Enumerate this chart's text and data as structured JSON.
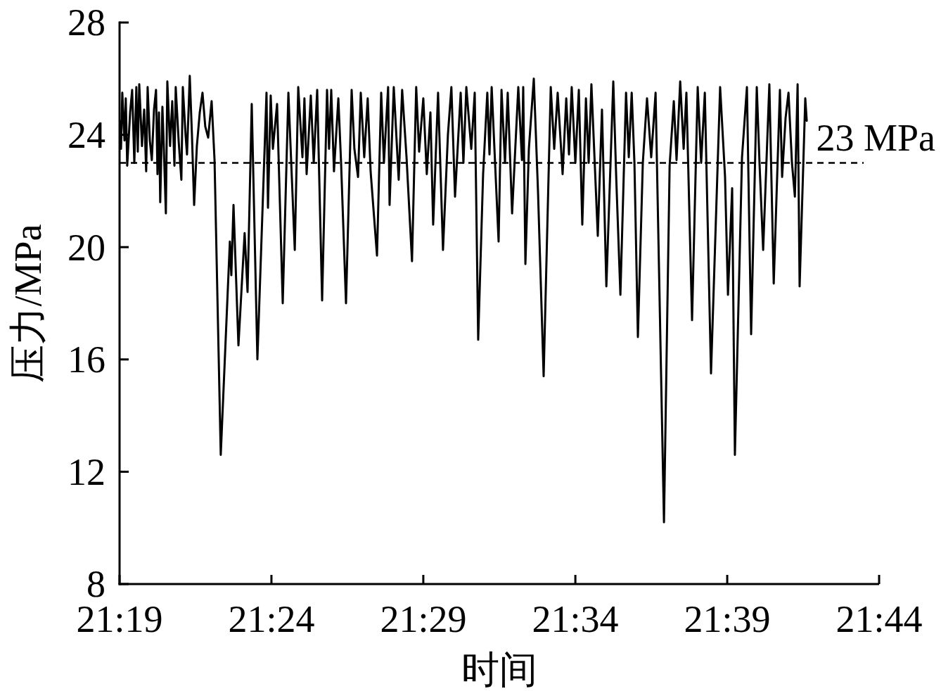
{
  "chart_data": {
    "type": "line",
    "xlabel": "时间",
    "ylabel": "压力/MPa",
    "color": "#000000",
    "xlim": [
      21.3167,
      21.7333
    ],
    "xticks": [
      {
        "value": 21.3167,
        "label": "21:19"
      },
      {
        "value": 21.4,
        "label": "21:24"
      },
      {
        "value": 21.4833,
        "label": "21:29"
      },
      {
        "value": 21.5667,
        "label": "21:34"
      },
      {
        "value": 21.65,
        "label": "21:39"
      },
      {
        "value": 21.7333,
        "label": "21:44"
      }
    ],
    "ylim": [
      8,
      28
    ],
    "yticks": [
      8,
      12,
      16,
      20,
      24,
      28
    ],
    "ref_lines": [
      {
        "axis": "y",
        "value": 23,
        "label": "23 MPa",
        "color": "#000000",
        "line_style": "dashed"
      }
    ],
    "x": [
      21.3167,
      21.3175,
      21.3182,
      21.3194,
      21.3201,
      21.3209,
      21.3225,
      21.3236,
      21.3248,
      21.3259,
      21.3267,
      21.3275,
      21.329,
      21.3302,
      21.3313,
      21.3321,
      21.3333,
      21.3344,
      21.3356,
      21.3367,
      21.3375,
      21.3383,
      21.339,
      21.3402,
      21.341,
      21.3421,
      21.3429,
      21.3444,
      21.3456,
      21.3468,
      21.3475,
      21.3491,
      21.3506,
      21.3514,
      21.3529,
      21.3537,
      21.3552,
      21.3564,
      21.3576,
      21.3591,
      21.3607,
      21.3622,
      21.3637,
      21.3653,
      21.3672,
      21.3688,
      21.3722,
      21.3772,
      21.378,
      21.3792,
      21.3819,
      21.3853,
      21.3869,
      21.3892,
      21.3923,
      21.3973,
      21.3981,
      21.3996,
      21.4008,
      21.4031,
      21.4062,
      21.4093,
      21.4128,
      21.4147,
      21.417,
      21.4181,
      21.4193,
      21.4216,
      21.4232,
      21.4251,
      21.4278,
      21.4305,
      21.4316,
      21.4328,
      21.4343,
      21.4367,
      21.4382,
      21.4409,
      21.444,
      21.4455,
      21.4475,
      21.449,
      21.4509,
      21.4528,
      21.4544,
      21.4579,
      21.4602,
      21.4617,
      21.464,
      21.4648,
      21.4671,
      21.4698,
      21.4717,
      21.4741,
      21.4771,
      21.4794,
      21.481,
      21.4833,
      21.4852,
      21.4872,
      21.4887,
      21.4914,
      21.4941,
      21.4968,
      21.4987,
      21.5007,
      21.5038,
      21.5053,
      21.5069,
      21.5096,
      21.5115,
      21.5134,
      21.5161,
      21.5184,
      21.5196,
      21.5208,
      21.5246,
      21.5262,
      21.5281,
      21.5296,
      21.532,
      21.5354,
      21.5374,
      21.5381,
      21.5393,
      21.5412,
      21.5439,
      21.5462,
      21.5493,
      21.5532,
      21.5551,
      21.557,
      21.5597,
      21.5617,
      21.5632,
      21.5647,
      21.5667,
      21.5686,
      21.5705,
      21.5725,
      21.574,
      21.5755,
      21.579,
      21.5813,
      21.5837,
      21.5875,
      21.5891,
      21.5914,
      21.5945,
      21.596,
      21.5976,
      21.5991,
      21.601,
      21.6037,
      21.606,
      21.6083,
      21.6107,
      21.6118,
      21.6153,
      21.6184,
      21.6207,
      21.6222,
      21.6242,
      21.6261,
      21.6276,
      21.6307,
      21.6338,
      21.6357,
      21.6377,
      21.6411,
      21.6461,
      21.6488,
      21.6504,
      21.6527,
      21.6542,
      21.6581,
      21.6608,
      21.6631,
      21.6662,
      21.6677,
      21.6697,
      21.6731,
      21.6755,
      21.6789,
      21.6801,
      21.682,
      21.6836,
      21.6855,
      21.6871,
      21.6886,
      21.6897,
      21.6928,
      21.6936
    ],
    "values": [
      24.5,
      23.5,
      25.5,
      23.8,
      25.3,
      22.9,
      24.8,
      25.6,
      23.0,
      25.7,
      23.4,
      25.8,
      23.6,
      24.9,
      22.7,
      25.7,
      23.8,
      23.1,
      24.9,
      25.6,
      22.6,
      24.8,
      21.6,
      25.0,
      23.5,
      21.2,
      25.9,
      23.6,
      25.2,
      22.9,
      25.7,
      23.8,
      22.4,
      25.7,
      24.0,
      23.3,
      26.1,
      24.0,
      21.5,
      23.6,
      24.8,
      25.5,
      24.3,
      23.9,
      25.2,
      23.1,
      12.6,
      20.2,
      19.0,
      21.5,
      16.5,
      20.5,
      18.4,
      25.1,
      16.0,
      25.5,
      21.4,
      25.4,
      23.5,
      25.1,
      18.0,
      25.5,
      19.9,
      25.7,
      23.2,
      25.3,
      22.6,
      25.4,
      23.0,
      25.6,
      18.1,
      25.6,
      23.5,
      25.6,
      22.7,
      25.3,
      23.0,
      18.0,
      25.6,
      23.5,
      22.5,
      25.5,
      23.2,
      25.3,
      22.7,
      19.7,
      25.5,
      23.0,
      25.7,
      21.5,
      25.7,
      22.4,
      25.6,
      23.2,
      19.5,
      25.7,
      23.4,
      25.3,
      22.6,
      24.8,
      20.8,
      25.5,
      19.9,
      24.0,
      25.7,
      21.8,
      25.5,
      23.0,
      25.7,
      23.5,
      25.5,
      16.7,
      22.6,
      25.5,
      23.3,
      25.7,
      20.2,
      25.6,
      23.0,
      25.5,
      21.2,
      25.7,
      23.1,
      25.7,
      19.4,
      23.5,
      26.0,
      22.0,
      15.4,
      25.7,
      23.5,
      25.5,
      22.6,
      25.3,
      23.3,
      25.7,
      23.0,
      25.6,
      20.8,
      25.3,
      23.0,
      25.8,
      20.4,
      24.9,
      18.6,
      25.9,
      22.5,
      18.3,
      25.5,
      23.2,
      25.5,
      23.0,
      16.8,
      23.0,
      25.3,
      23.2,
      25.5,
      21.8,
      10.2,
      22.9,
      25.2,
      23.1,
      25.9,
      23.5,
      25.5,
      17.4,
      25.7,
      23.0,
      25.5,
      15.5,
      25.7,
      22.5,
      18.3,
      22.1,
      12.6,
      23.2,
      25.7,
      16.9,
      25.7,
      23.0,
      19.9,
      25.8,
      18.7,
      25.6,
      22.5,
      24.6,
      25.5,
      23.0,
      21.8,
      25.8,
      18.6,
      25.3,
      24.5
    ]
  }
}
